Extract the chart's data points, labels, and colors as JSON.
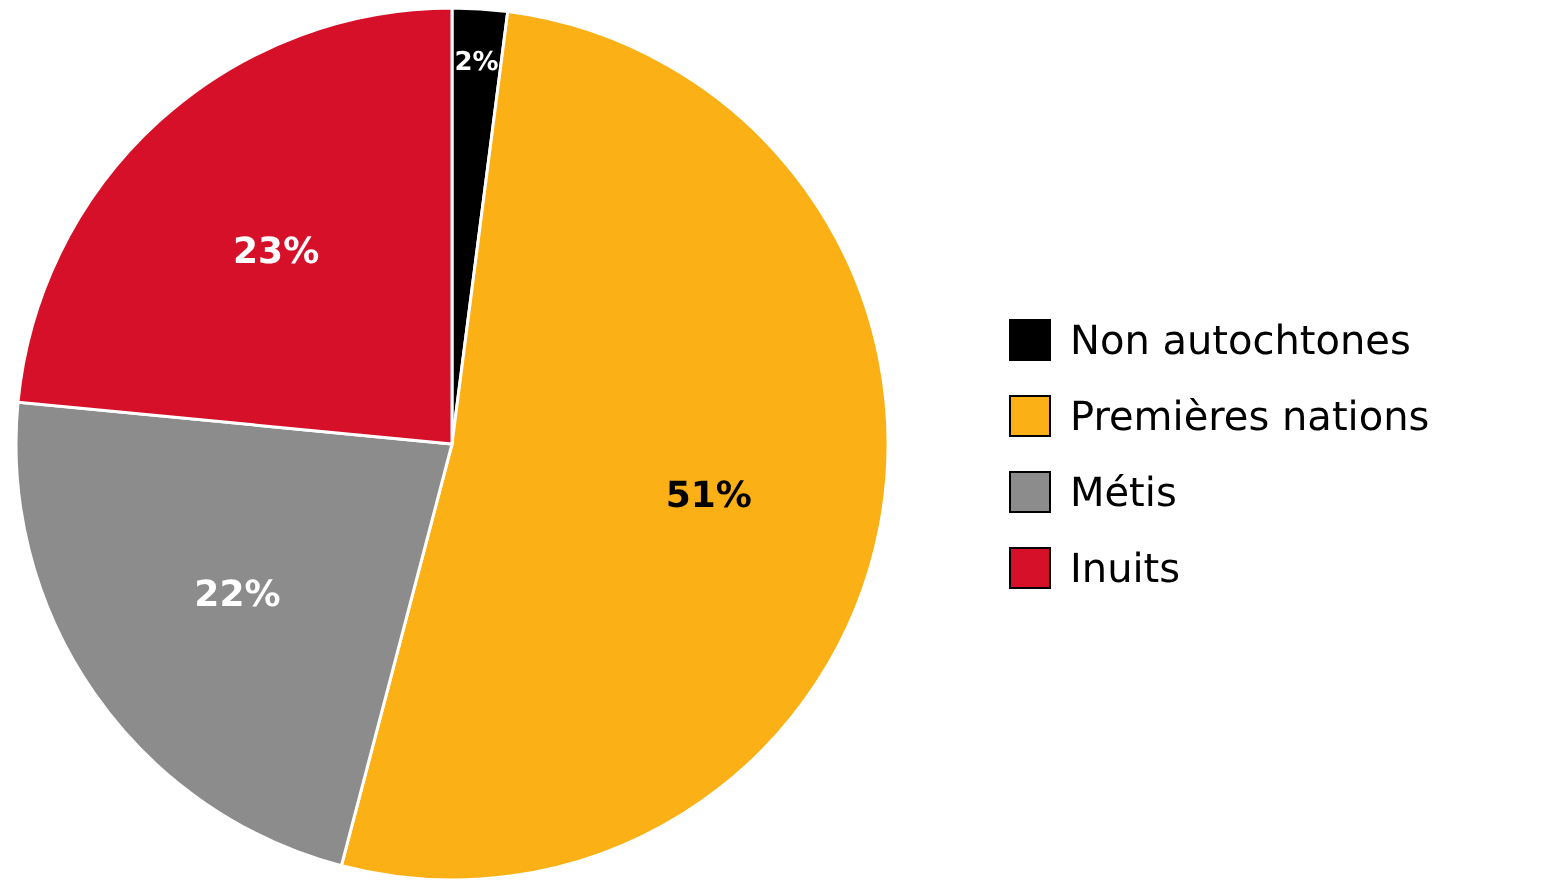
{
  "chart_data": {
    "type": "pie",
    "categories": [
      "Non autochtones",
      "Premières nations",
      "Métis",
      "Inuits"
    ],
    "values": [
      2,
      51,
      22,
      23
    ],
    "colors": [
      "#000000",
      "#fbb116",
      "#8c8c8c",
      "#d7102a"
    ],
    "value_labels": [
      "2%",
      "51%",
      "22%",
      "23%"
    ],
    "legend": "right"
  }
}
